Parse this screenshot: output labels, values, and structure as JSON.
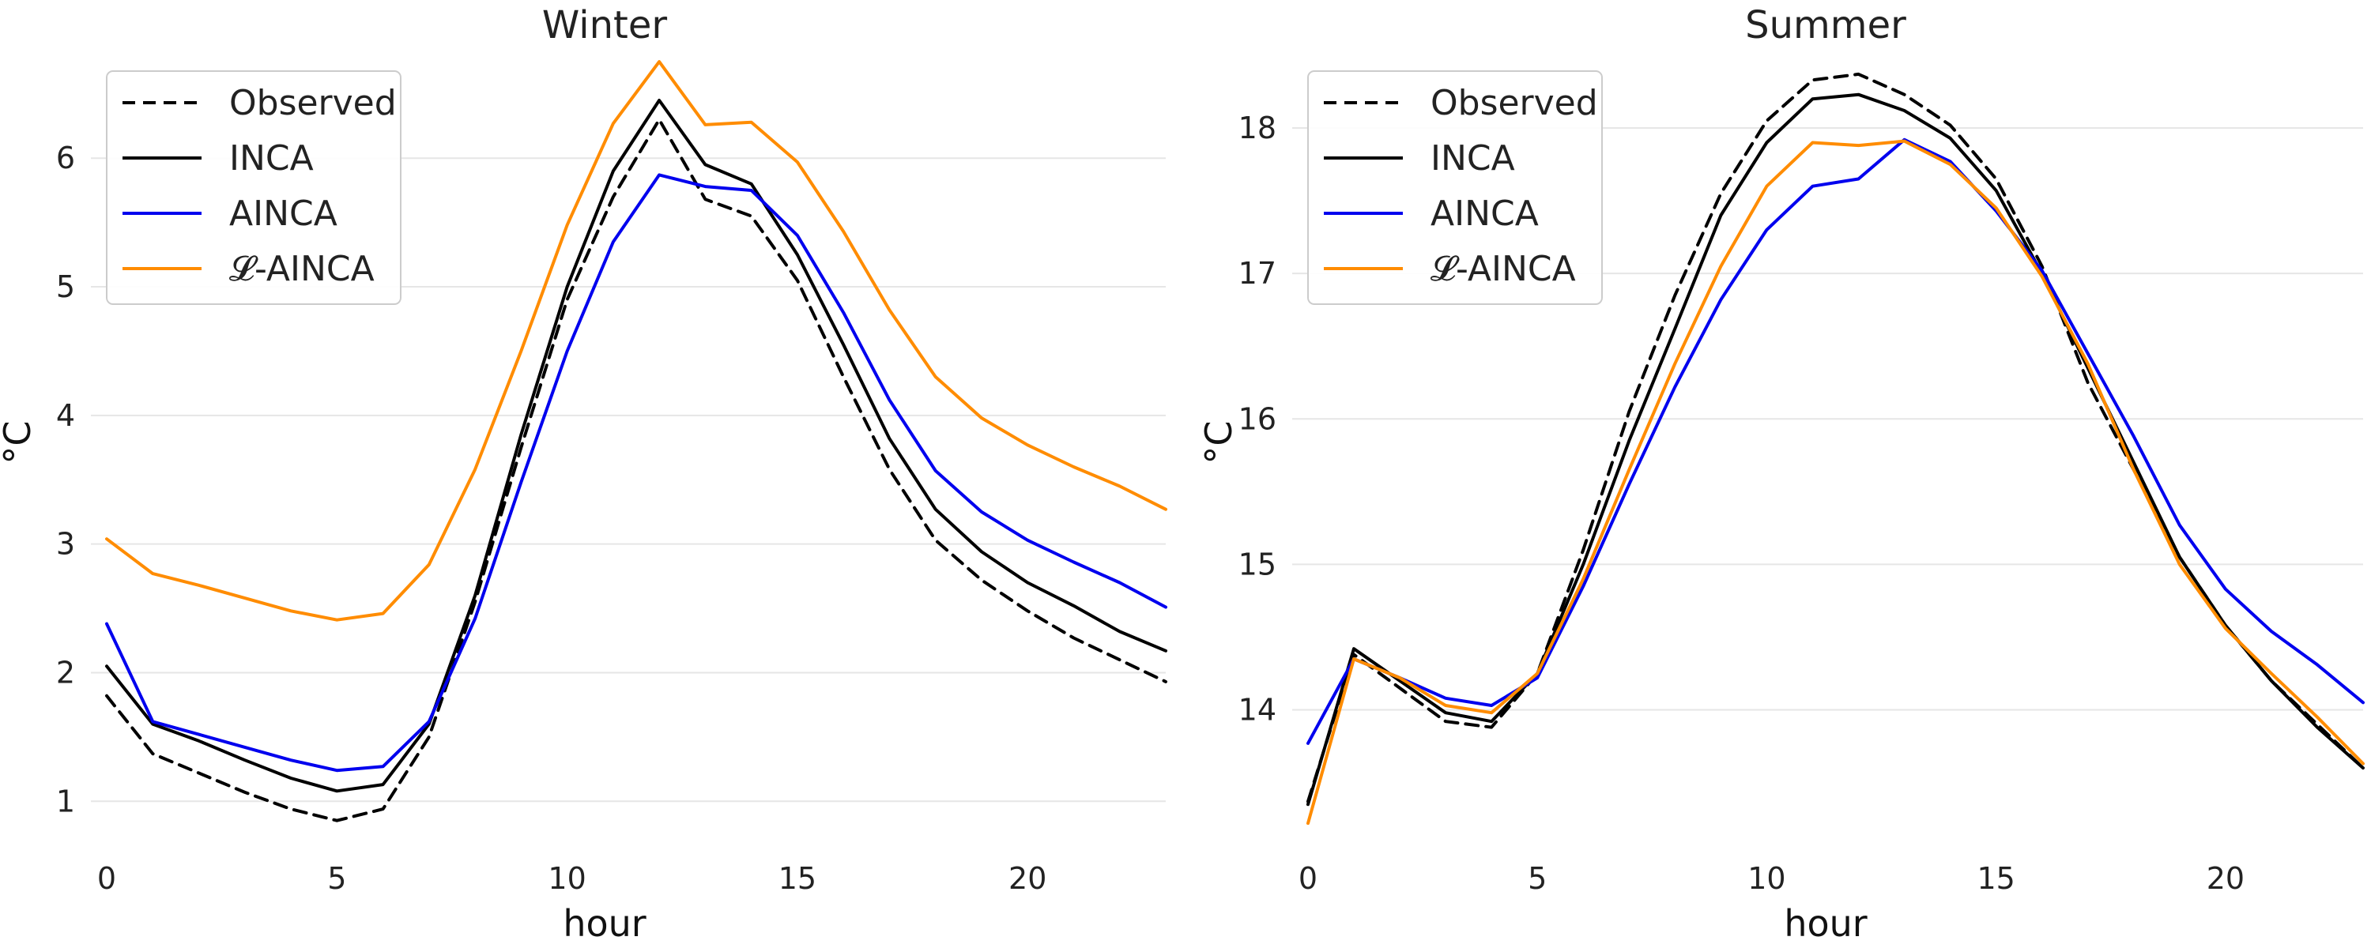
{
  "chart_data": [
    {
      "type": "line",
      "title": "Winter",
      "xlabel": "hour",
      "ylabel": "°C",
      "xlim": [
        0,
        23
      ],
      "ylim": [
        0.75,
        6.8
      ],
      "xticks": [
        0,
        5,
        10,
        15,
        20
      ],
      "yticks": [
        1,
        2,
        3,
        4,
        5,
        6
      ],
      "grid": "horizontal",
      "legend_position": "top-left",
      "x": [
        0,
        1,
        2,
        3,
        4,
        5,
        6,
        7,
        8,
        9,
        10,
        11,
        12,
        13,
        14,
        15,
        16,
        17,
        18,
        19,
        20,
        21,
        22,
        23
      ],
      "series": [
        {
          "name": "Observed",
          "color": "#000000",
          "style": "dashed",
          "values": [
            1.82,
            1.37,
            1.22,
            1.07,
            0.94,
            0.85,
            0.94,
            1.5,
            2.55,
            3.75,
            4.9,
            5.7,
            6.3,
            5.68,
            5.55,
            5.05,
            4.3,
            3.58,
            3.03,
            2.72,
            2.48,
            2.27,
            2.1,
            1.93
          ]
        },
        {
          "name": "INCA",
          "color": "#000000",
          "style": "solid",
          "values": [
            2.05,
            1.6,
            1.47,
            1.32,
            1.18,
            1.08,
            1.13,
            1.6,
            2.6,
            3.85,
            5.0,
            5.9,
            6.45,
            5.95,
            5.8,
            5.25,
            4.55,
            3.82,
            3.27,
            2.94,
            2.7,
            2.52,
            2.32,
            2.17
          ]
        },
        {
          "name": "AINCA",
          "color": "#0000ee",
          "style": "solid",
          "values": [
            2.38,
            1.62,
            1.52,
            1.42,
            1.32,
            1.24,
            1.27,
            1.62,
            2.42,
            3.48,
            4.5,
            5.35,
            5.87,
            5.78,
            5.75,
            5.4,
            4.8,
            4.12,
            3.57,
            3.25,
            3.03,
            2.86,
            2.7,
            2.51
          ]
        },
        {
          "name": "𝓛-AINCA",
          "color": "#ff8c00",
          "style": "solid",
          "values": [
            3.04,
            2.77,
            2.68,
            2.58,
            2.48,
            2.41,
            2.46,
            2.84,
            3.58,
            4.5,
            5.48,
            6.27,
            6.75,
            6.26,
            6.28,
            5.97,
            5.43,
            4.82,
            4.3,
            3.98,
            3.77,
            3.6,
            3.45,
            3.27
          ]
        }
      ]
    },
    {
      "type": "line",
      "title": "Summer",
      "xlabel": "hour",
      "ylabel": "°C",
      "xlim": [
        0,
        23
      ],
      "ylim": [
        13.15,
        18.5
      ],
      "xticks": [
        0,
        5,
        10,
        15,
        20
      ],
      "yticks": [
        14,
        15,
        16,
        17,
        18
      ],
      "grid": "horizontal",
      "legend_position": "top-left",
      "x": [
        0,
        1,
        2,
        3,
        4,
        5,
        6,
        7,
        8,
        9,
        10,
        11,
        12,
        13,
        14,
        15,
        16,
        17,
        18,
        19,
        20,
        21,
        22,
        23
      ],
      "series": [
        {
          "name": "Observed",
          "color": "#000000",
          "style": "dashed",
          "values": [
            13.37,
            14.38,
            14.15,
            13.92,
            13.88,
            14.25,
            15.1,
            16.05,
            16.85,
            17.55,
            18.05,
            18.33,
            18.37,
            18.23,
            18.02,
            17.65,
            17.05,
            16.25,
            15.65,
            15.05,
            14.58,
            14.2,
            13.9,
            13.6
          ]
        },
        {
          "name": "INCA",
          "color": "#000000",
          "style": "solid",
          "values": [
            13.35,
            14.42,
            14.2,
            13.98,
            13.92,
            14.25,
            15.0,
            15.85,
            16.62,
            17.4,
            17.9,
            18.2,
            18.23,
            18.12,
            17.93,
            17.57,
            17.0,
            16.35,
            15.7,
            15.05,
            14.58,
            14.2,
            13.88,
            13.6
          ]
        },
        {
          "name": "AINCA",
          "color": "#0000ee",
          "style": "solid",
          "values": [
            13.77,
            14.35,
            14.22,
            14.08,
            14.03,
            14.22,
            14.85,
            15.55,
            16.22,
            16.82,
            17.3,
            17.6,
            17.65,
            17.92,
            17.77,
            17.43,
            17.02,
            16.45,
            15.88,
            15.27,
            14.83,
            14.54,
            14.31,
            14.05
          ]
        },
        {
          "name": "𝓛-AINCA",
          "color": "#ff8c00",
          "style": "solid",
          "values": [
            13.22,
            14.35,
            14.22,
            14.03,
            13.98,
            14.25,
            14.9,
            15.65,
            16.38,
            17.05,
            17.6,
            17.9,
            17.88,
            17.91,
            17.75,
            17.45,
            16.98,
            16.38,
            15.65,
            15.0,
            14.56,
            14.25,
            13.95,
            13.63
          ]
        }
      ]
    }
  ]
}
